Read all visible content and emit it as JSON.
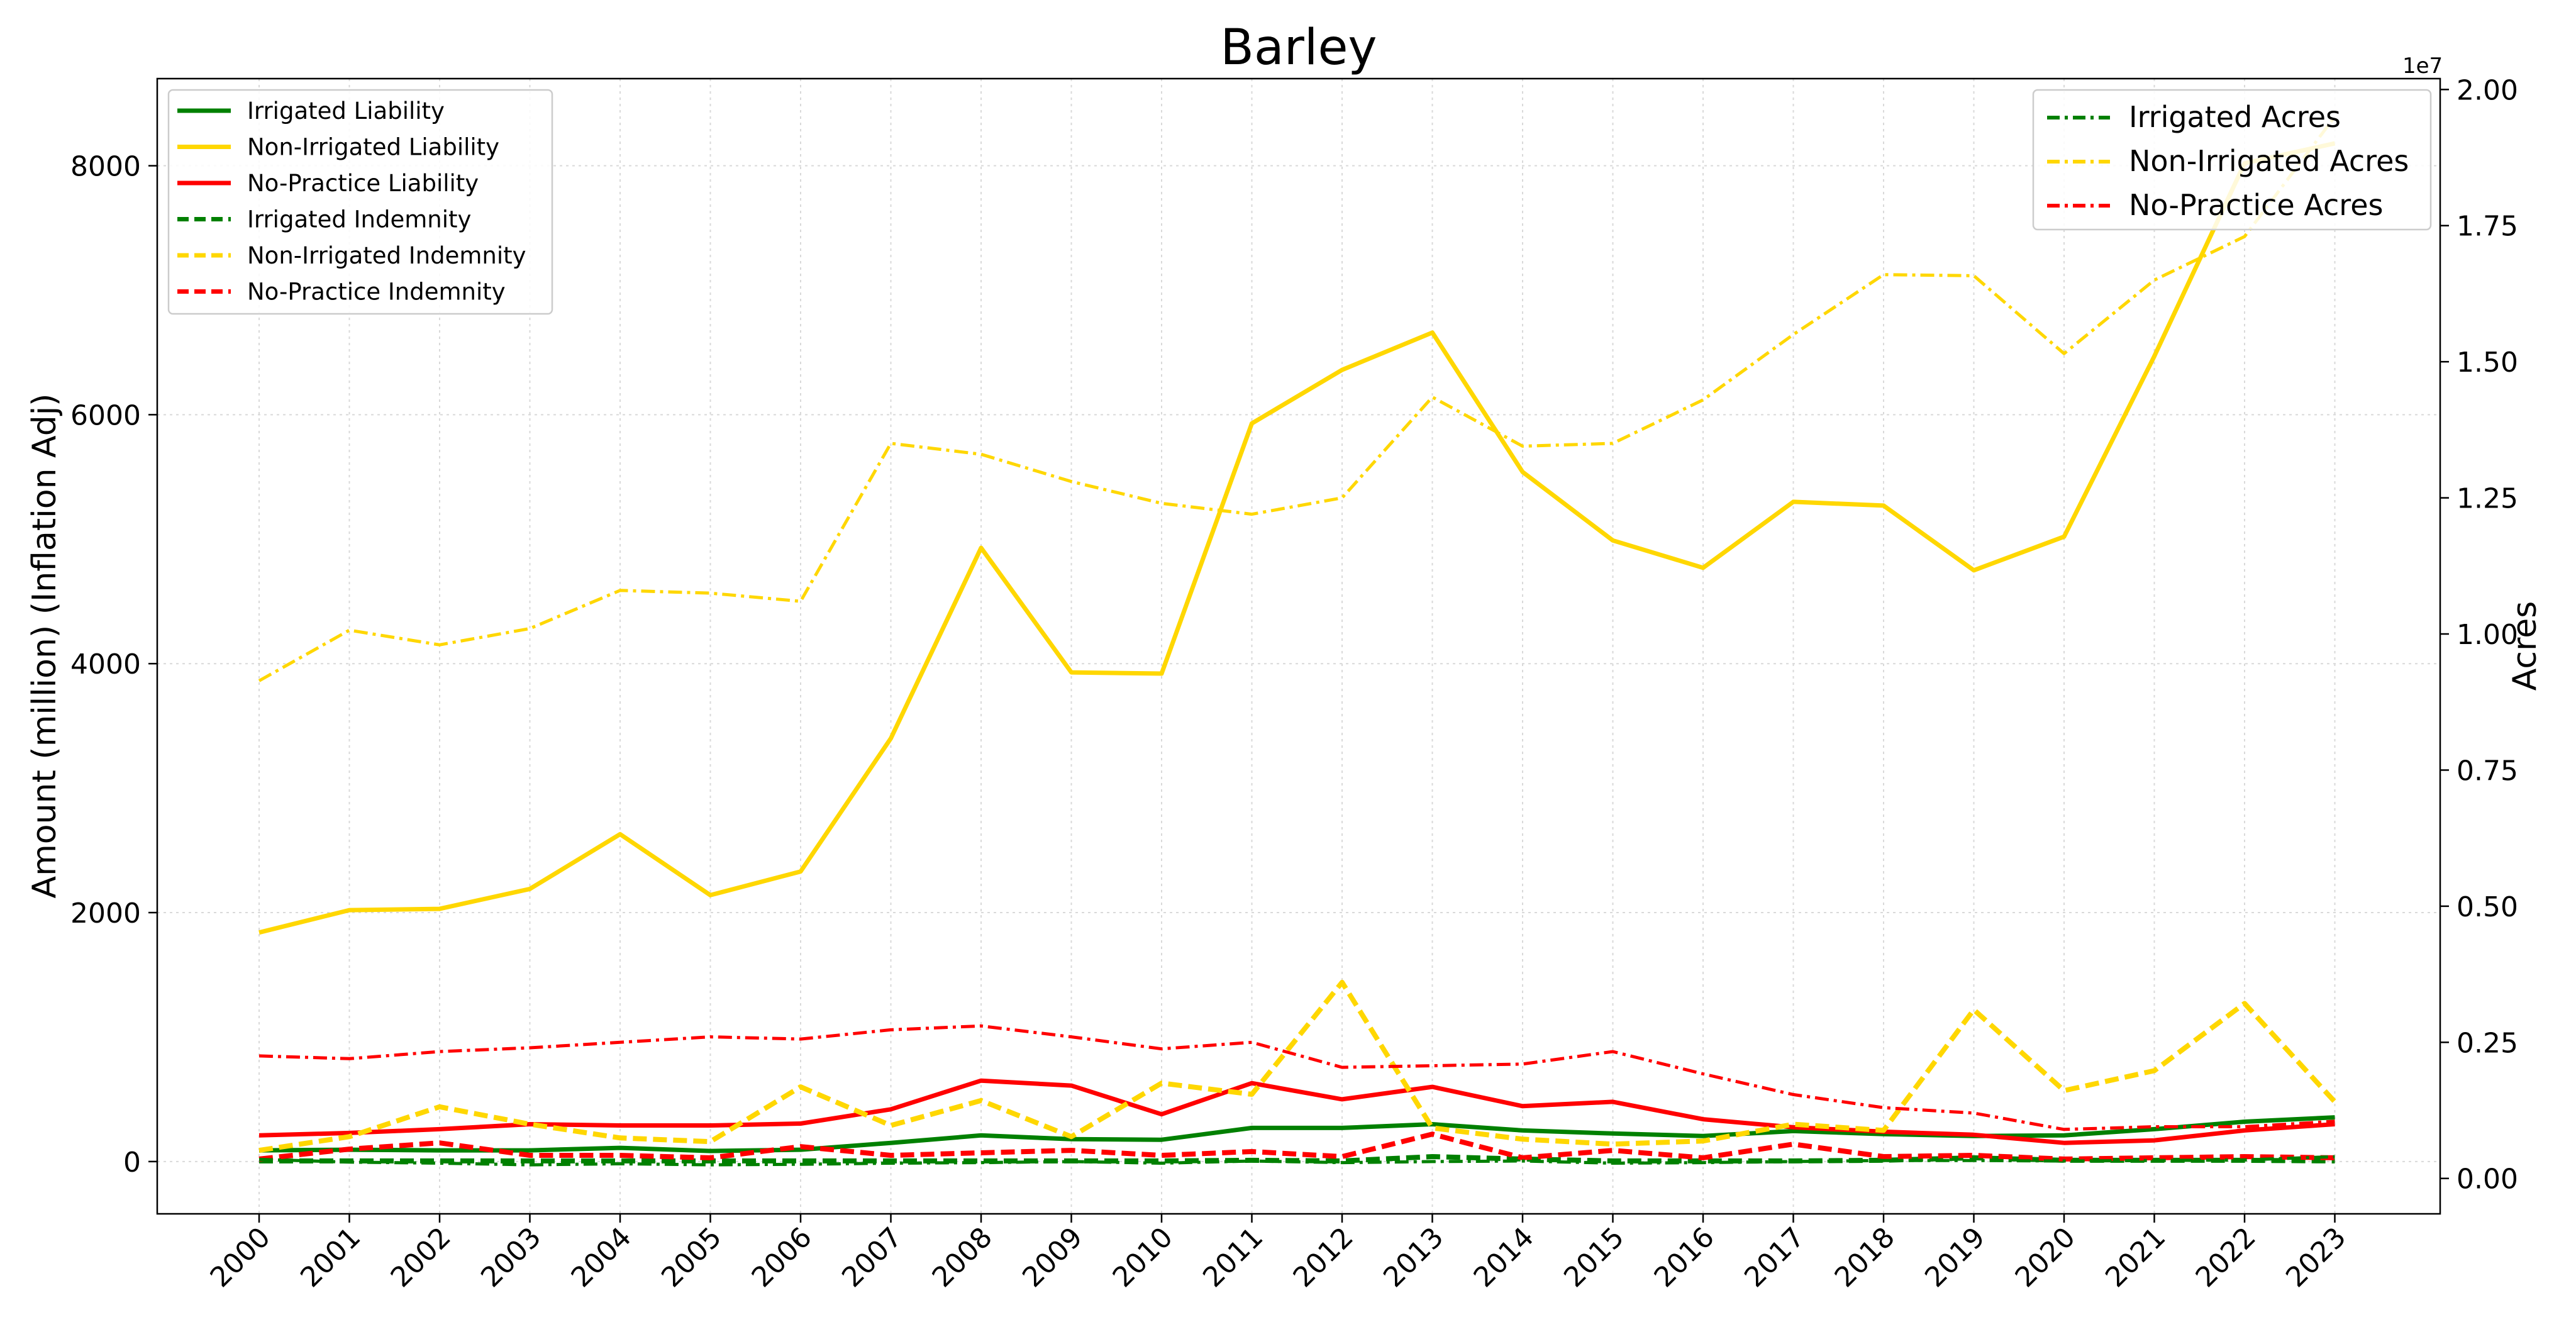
{
  "chart_data": {
    "type": "line",
    "title": "Barley",
    "ylabel": "Amount (million) (Inflation Adj)",
    "y2label": "Acres",
    "y2_offset_text": "1e7",
    "x": [
      2000,
      2001,
      2002,
      2003,
      2004,
      2005,
      2006,
      2007,
      2008,
      2009,
      2010,
      2011,
      2012,
      2013,
      2014,
      2015,
      2016,
      2017,
      2018,
      2019,
      2020,
      2021,
      2022,
      2023
    ],
    "x_tick_labels": [
      "2000",
      "2001",
      "2002",
      "2003",
      "2004",
      "2005",
      "2006",
      "2007",
      "2008",
      "2009",
      "2010",
      "2011",
      "2012",
      "2013",
      "2014",
      "2015",
      "2016",
      "2017",
      "2018",
      "2019",
      "2020",
      "2021",
      "2022",
      "2023"
    ],
    "ylim": [
      -420,
      8700
    ],
    "y_ticks": [
      0,
      2000,
      4000,
      6000,
      8000
    ],
    "y_tick_labels": [
      "0",
      "2000",
      "4000",
      "6000",
      "8000"
    ],
    "y2lim": [
      -650000,
      20200000
    ],
    "y2_ticks": [
      0,
      2500000,
      5000000,
      7500000,
      10000000,
      12500000,
      15000000,
      17500000,
      20000000
    ],
    "y2_tick_labels": [
      "0.00",
      "0.25",
      "0.50",
      "0.75",
      "1.00",
      "1.25",
      "1.50",
      "1.75",
      "2.00"
    ],
    "grid": true,
    "legend_left_position": "upper-left",
    "legend_right_position": "upper-right",
    "series": [
      {
        "name": "Irrigated Liability",
        "axis": "left",
        "style": "solid",
        "color": "#008000",
        "values": [
          90,
          95,
          90,
          90,
          110,
          85,
          95,
          150,
          210,
          180,
          175,
          270,
          270,
          300,
          250,
          225,
          205,
          245,
          220,
          205,
          210,
          260,
          320,
          355
        ]
      },
      {
        "name": "Non-Irrigated Liability",
        "axis": "left",
        "style": "solid",
        "color": "#FFD700",
        "values": [
          1840,
          2020,
          2030,
          2190,
          2630,
          2140,
          2330,
          3400,
          4930,
          3930,
          3920,
          5930,
          6360,
          6660,
          5540,
          4990,
          4770,
          5300,
          5270,
          4750,
          5020,
          6470,
          8020,
          8180
        ]
      },
      {
        "name": "No-Practice Liability",
        "axis": "left",
        "style": "solid",
        "color": "#FF0000",
        "values": [
          210,
          230,
          260,
          300,
          290,
          290,
          305,
          420,
          650,
          610,
          380,
          630,
          500,
          600,
          445,
          480,
          340,
          275,
          240,
          215,
          150,
          170,
          250,
          300
        ]
      },
      {
        "name": "Irrigated Indemnity",
        "axis": "left",
        "style": "dashed",
        "color": "#008000",
        "values": [
          5,
          5,
          5,
          5,
          5,
          5,
          5,
          5,
          5,
          5,
          5,
          10,
          5,
          40,
          20,
          5,
          5,
          5,
          10,
          30,
          10,
          10,
          10,
          5
        ]
      },
      {
        "name": "Non-Irrigated Indemnity",
        "axis": "left",
        "style": "dashed",
        "color": "#FFD700",
        "values": [
          90,
          200,
          440,
          300,
          190,
          160,
          600,
          290,
          490,
          200,
          630,
          540,
          1440,
          270,
          180,
          140,
          165,
          300,
          250,
          1220,
          570,
          730,
          1270,
          480
        ]
      },
      {
        "name": "No-Practice Indemnity",
        "axis": "left",
        "style": "dashed",
        "color": "#FF0000",
        "values": [
          20,
          100,
          150,
          50,
          50,
          30,
          120,
          50,
          70,
          90,
          50,
          80,
          40,
          220,
          30,
          90,
          30,
          140,
          40,
          50,
          20,
          30,
          40,
          30
        ]
      },
      {
        "name": "Irrigated Acres",
        "axis": "right",
        "style": "dashdot",
        "color": "#008000",
        "values": [
          350000,
          300000,
          280000,
          250000,
          270000,
          250000,
          260000,
          280000,
          290000,
          310000,
          280000,
          320000,
          290000,
          310000,
          320000,
          280000,
          290000,
          310000,
          330000,
          330000,
          320000,
          330000,
          340000,
          400000
        ]
      },
      {
        "name": "Non-Irrigated Acres",
        "axis": "right",
        "style": "dashdot",
        "color": "#FFD700",
        "values": [
          9140000,
          10070000,
          9800000,
          10100000,
          10800000,
          10750000,
          10600000,
          13500000,
          13300000,
          12800000,
          12400000,
          12200000,
          12500000,
          14350000,
          13450000,
          13500000,
          14300000,
          15500000,
          16600000,
          16580000,
          15150000,
          16500000,
          17300000,
          19500000
        ]
      },
      {
        "name": "No-Practice Acres",
        "axis": "right",
        "style": "dashdot",
        "color": "#FF0000",
        "values": [
          2250000,
          2200000,
          2330000,
          2400000,
          2500000,
          2600000,
          2560000,
          2730000,
          2800000,
          2600000,
          2380000,
          2500000,
          2040000,
          2070000,
          2100000,
          2330000,
          1920000,
          1540000,
          1300000,
          1200000,
          900000,
          950000,
          950000,
          1050000
        ]
      }
    ]
  }
}
